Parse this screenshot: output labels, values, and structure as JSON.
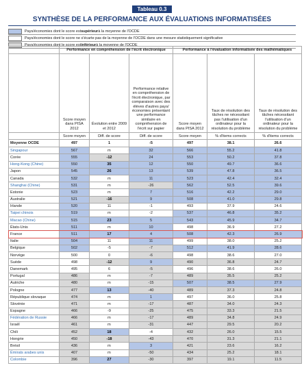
{
  "header": {
    "label": "Tableau 0.3",
    "title": "SYNTHÈSE DE LA PERFORMANCE AUX ÉVALUATIONS INFORMATISÉES"
  },
  "legend": [
    {
      "before": "Pays/économies dont le score est ",
      "strong": "supérieur",
      "after": " à la moyenne de l'OCDE",
      "color": "#b4c6e7"
    },
    {
      "text": "Pays/économies dont le score ne s'écarte pas de la moyenne de l'OCDE dans une mesure statistiquement significative",
      "color": "#ffffff"
    },
    {
      "before": "Pays/économies dont le score est ",
      "strong": "inférieur",
      "after": " à la moyenne de l'OCDE",
      "color": "#d9d9d9"
    }
  ],
  "table": {
    "groups": [
      "Performance en compréhension de l'écrit électronique",
      "Performance à l'évaluation informatisée des mathématiques"
    ],
    "columns": [
      "Score moyen dans PISA 2012",
      "Évolution entre 2009 et 2012",
      "Performance relative en compréhension de l'écrit électronique, par comparaison avec des élèves d'autres pays/économies présentant une performance similaire en compréhension de l'écrit sur papier",
      "Score moyen dans PISA 2012",
      "Taux de résolution des tâches ne nécessitant pas l'utilisation d'un ordinateur pour la résolution du problème",
      "Taux de résolution des tâches nécessitant l'utilisation d'un ordinateur pour la résolution du problème"
    ],
    "units": [
      "Score moyen",
      "Diff. de score",
      "Diff. de score",
      "Score moyen",
      "% d'items corrects",
      "% d'items corrects"
    ],
    "average": {
      "name": "Moyenne OCDE",
      "values": [
        "497",
        "1",
        "-5",
        "497",
        "38.1",
        "26.6"
      ]
    },
    "partner_color": "#2e6db4",
    "highlight_color": "#d9534f",
    "bold_color": "#000000",
    "rows": [
      {
        "name": "Singapour",
        "values": [
          "567",
          "m",
          "32",
          "566",
          "55.2",
          "41.8"
        ],
        "partner": true,
        "shades": [
          "#b4c6e7",
          "#ffffff",
          "#b4c6e7",
          "#b4c6e7",
          "#b4c6e7",
          "#b4c6e7"
        ]
      },
      {
        "name": "Corée",
        "values": [
          "555",
          "-12",
          "24",
          "553",
          "50.2",
          "37.8"
        ],
        "bold": true,
        "shades": [
          "#b4c6e7",
          "#d9d9d9",
          "#b4c6e7",
          "#b4c6e7",
          "#b4c6e7",
          "#b4c6e7"
        ]
      },
      {
        "name": "Hong-Kong (Chine)",
        "values": [
          "550",
          "35",
          "12",
          "550",
          "49.7",
          "36.6"
        ],
        "partner": true,
        "bold": true,
        "shades": [
          "#b4c6e7",
          "#b4c6e7",
          "#b4c6e7",
          "#b4c6e7",
          "#b4c6e7",
          "#b4c6e7"
        ]
      },
      {
        "name": "Japon",
        "values": [
          "545",
          "26",
          "13",
          "539",
          "47.8",
          "36.5"
        ],
        "bold": true,
        "shades": [
          "#b4c6e7",
          "#b4c6e7",
          "#b4c6e7",
          "#b4c6e7",
          "#b4c6e7",
          "#b4c6e7"
        ]
      },
      {
        "name": "Canada",
        "values": [
          "532",
          "m",
          "11",
          "523",
          "42.4",
          "32.4"
        ],
        "shades": [
          "#b4c6e7",
          "#ffffff",
          "#b4c6e7",
          "#b4c6e7",
          "#b4c6e7",
          "#b4c6e7"
        ]
      },
      {
        "name": "Shanghai (Chine)",
        "values": [
          "531",
          "m",
          "-26",
          "562",
          "52.5",
          "39.6"
        ],
        "partner": true,
        "shades": [
          "#b4c6e7",
          "#ffffff",
          "#d9d9d9",
          "#b4c6e7",
          "#b4c6e7",
          "#b4c6e7"
        ]
      },
      {
        "name": "Estonie",
        "values": [
          "523",
          "m",
          "7",
          "516",
          "42.2",
          "29.0"
        ],
        "shades": [
          "#b4c6e7",
          "#ffffff",
          "#b4c6e7",
          "#b4c6e7",
          "#b4c6e7",
          "#b4c6e7"
        ]
      },
      {
        "name": "Australie",
        "values": [
          "521",
          "-16",
          "9",
          "508",
          "41.0",
          "29.8"
        ],
        "bold": true,
        "shades": [
          "#b4c6e7",
          "#d9d9d9",
          "#b4c6e7",
          "#b4c6e7",
          "#b4c6e7",
          "#b4c6e7"
        ]
      },
      {
        "name": "Irlande",
        "values": [
          "520",
          "11",
          "-1",
          "493",
          "37.9",
          "24.6"
        ],
        "shades": [
          "#b4c6e7",
          "#ffffff",
          "#ffffff",
          "#ffffff",
          "#ffffff",
          "#ffffff"
        ]
      },
      {
        "name": "Taipei chinois",
        "values": [
          "519",
          "m",
          "-2",
          "537",
          "46.8",
          "35.2"
        ],
        "partner": true,
        "shades": [
          "#b4c6e7",
          "#ffffff",
          "#ffffff",
          "#b4c6e7",
          "#b4c6e7",
          "#b4c6e7"
        ]
      },
      {
        "name": "Macao (Chine)",
        "values": [
          "515",
          "23",
          "5",
          "543",
          "45.9",
          "34.7"
        ],
        "partner": true,
        "bold": true,
        "shades": [
          "#b4c6e7",
          "#b4c6e7",
          "#b4c6e7",
          "#b4c6e7",
          "#b4c6e7",
          "#b4c6e7"
        ]
      },
      {
        "name": "États-Unis",
        "values": [
          "511",
          "m",
          "10",
          "498",
          "36.9",
          "27.2"
        ],
        "shades": [
          "#b4c6e7",
          "#ffffff",
          "#b4c6e7",
          "#ffffff",
          "#ffffff",
          "#ffffff"
        ]
      },
      {
        "name": "France",
        "values": [
          "511",
          "17",
          "4",
          "508",
          "42.3",
          "26.9"
        ],
        "bold": true,
        "highlight": true,
        "shades": [
          "#b4c6e7",
          "#b4c6e7",
          "#b4c6e7",
          "#b4c6e7",
          "#b4c6e7",
          "#b4c6e7"
        ]
      },
      {
        "name": "Italie",
        "values": [
          "504",
          "11",
          "11",
          "499",
          "38.0",
          "25.2"
        ],
        "shades": [
          "#b4c6e7",
          "#ffffff",
          "#b4c6e7",
          "#ffffff",
          "#ffffff",
          "#ffffff"
        ]
      },
      {
        "name": "Belgique",
        "values": [
          "502",
          "-5",
          "-7",
          "512",
          "41.9",
          "28.6"
        ],
        "shades": [
          "#b4c6e7",
          "#ffffff",
          "#d9d9d9",
          "#b4c6e7",
          "#b4c6e7",
          "#b4c6e7"
        ]
      },
      {
        "name": "Norvège",
        "values": [
          "500",
          "0",
          "-6",
          "498",
          "38.6",
          "27.0"
        ],
        "shades": [
          "#ffffff",
          "#ffffff",
          "#d9d9d9",
          "#ffffff",
          "#ffffff",
          "#ffffff"
        ]
      },
      {
        "name": "Suède",
        "values": [
          "498",
          "-12",
          "9",
          "490",
          "36.8",
          "24.7"
        ],
        "bold": true,
        "shades": [
          "#ffffff",
          "#d9d9d9",
          "#b4c6e7",
          "#d9d9d9",
          "#d9d9d9",
          "#d9d9d9"
        ]
      },
      {
        "name": "Danemark",
        "values": [
          "495",
          "6",
          "-5",
          "496",
          "38.6",
          "26.0"
        ],
        "shades": [
          "#ffffff",
          "#ffffff",
          "#d9d9d9",
          "#ffffff",
          "#ffffff",
          "#ffffff"
        ]
      },
      {
        "name": "Portugal",
        "values": [
          "486",
          "m",
          "-7",
          "489",
          "35.5",
          "25.2"
        ],
        "shades": [
          "#d9d9d9",
          "#ffffff",
          "#d9d9d9",
          "#d9d9d9",
          "#d9d9d9",
          "#d9d9d9"
        ]
      },
      {
        "name": "Autriche",
        "values": [
          "480",
          "m",
          "-15",
          "507",
          "38.5",
          "27.9"
        ],
        "shades": [
          "#d9d9d9",
          "#ffffff",
          "#d9d9d9",
          "#b4c6e7",
          "#b4c6e7",
          "#b4c6e7"
        ]
      },
      {
        "name": "Pologne",
        "values": [
          "477",
          "13",
          "-40",
          "489",
          "37.3",
          "24.8"
        ],
        "bold": true,
        "shades": [
          "#d9d9d9",
          "#b4c6e7",
          "#d9d9d9",
          "#d9d9d9",
          "#d9d9d9",
          "#d9d9d9"
        ]
      },
      {
        "name": "République slovaque",
        "values": [
          "474",
          "m",
          "1",
          "497",
          "36.0",
          "25.8"
        ],
        "shades": [
          "#d9d9d9",
          "#ffffff",
          "#b4c6e7",
          "#ffffff",
          "#ffffff",
          "#ffffff"
        ]
      },
      {
        "name": "Slovénie",
        "values": [
          "471",
          "m",
          "-17",
          "487",
          "34.0",
          "24.3"
        ],
        "shades": [
          "#d9d9d9",
          "#ffffff",
          "#d9d9d9",
          "#d9d9d9",
          "#d9d9d9",
          "#d9d9d9"
        ]
      },
      {
        "name": "Espagne",
        "values": [
          "466",
          "-9",
          "-25",
          "475",
          "33.3",
          "21.5"
        ],
        "shades": [
          "#d9d9d9",
          "#ffffff",
          "#d9d9d9",
          "#d9d9d9",
          "#d9d9d9",
          "#d9d9d9"
        ]
      },
      {
        "name": "Fédération de Russie",
        "values": [
          "466",
          "m",
          "-17",
          "489",
          "34.8",
          "24.9"
        ],
        "partner": true,
        "shades": [
          "#d9d9d9",
          "#ffffff",
          "#d9d9d9",
          "#d9d9d9",
          "#d9d9d9",
          "#d9d9d9"
        ]
      },
      {
        "name": "Israël",
        "values": [
          "461",
          "m",
          "-31",
          "447",
          "29.5",
          "20.2"
        ],
        "shades": [
          "#d9d9d9",
          "#ffffff",
          "#d9d9d9",
          "#d9d9d9",
          "#d9d9d9",
          "#d9d9d9"
        ]
      },
      {
        "name": "Chili",
        "values": [
          "452",
          "18",
          "-4",
          "432",
          "26.0",
          "15.5"
        ],
        "bold": true,
        "shades": [
          "#d9d9d9",
          "#b4c6e7",
          "#ffffff",
          "#d9d9d9",
          "#d9d9d9",
          "#d9d9d9"
        ]
      },
      {
        "name": "Hongrie",
        "values": [
          "450",
          "-18",
          "-43",
          "470",
          "31.3",
          "21.1"
        ],
        "bold": true,
        "shades": [
          "#d9d9d9",
          "#d9d9d9",
          "#d9d9d9",
          "#d9d9d9",
          "#d9d9d9",
          "#d9d9d9"
        ]
      },
      {
        "name": "Brésil",
        "values": [
          "436",
          "m",
          "3",
          "421",
          "23.6",
          "16.2"
        ],
        "shades": [
          "#d9d9d9",
          "#ffffff",
          "#b4c6e7",
          "#d9d9d9",
          "#d9d9d9",
          "#d9d9d9"
        ]
      },
      {
        "name": "Émirats arabes unis",
        "values": [
          "407",
          "m",
          "-50",
          "434",
          "25.2",
          "18.1"
        ],
        "partner": true,
        "shades": [
          "#d9d9d9",
          "#ffffff",
          "#d9d9d9",
          "#d9d9d9",
          "#d9d9d9",
          "#d9d9d9"
        ]
      },
      {
        "name": "Colombie",
        "values": [
          "396",
          "27",
          "-30",
          "397",
          "19.1",
          "11.5"
        ],
        "partner": true,
        "bold": true,
        "shades": [
          "#d9d9d9",
          "#b4c6e7",
          "#d9d9d9",
          "#d9d9d9",
          "#d9d9d9",
          "#d9d9d9"
        ]
      }
    ]
  }
}
